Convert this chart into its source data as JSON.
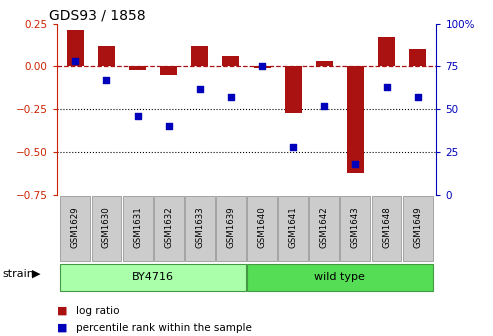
{
  "title": "GDS93 / 1858",
  "samples": [
    "GSM1629",
    "GSM1630",
    "GSM1631",
    "GSM1632",
    "GSM1633",
    "GSM1639",
    "GSM1640",
    "GSM1641",
    "GSM1642",
    "GSM1643",
    "GSM1648",
    "GSM1649"
  ],
  "log_ratio": [
    0.21,
    0.12,
    -0.02,
    -0.05,
    0.12,
    0.06,
    -0.01,
    -0.27,
    0.03,
    -0.62,
    0.17,
    0.1
  ],
  "percentile_rank": [
    78,
    67,
    46,
    40,
    62,
    57,
    75,
    28,
    52,
    18,
    63,
    57
  ],
  "strain_groups": [
    {
      "label": "BY4716",
      "start": 0,
      "end": 5,
      "color": "#aaffaa"
    },
    {
      "label": "wild type",
      "start": 6,
      "end": 11,
      "color": "#55dd55"
    }
  ],
  "bar_color": "#aa1111",
  "dot_color": "#0000bb",
  "ylim_left": [
    -0.75,
    0.25
  ],
  "ylim_right": [
    0,
    100
  ],
  "dotted_lines": [
    -0.25,
    -0.5
  ],
  "background_color": "#ffffff",
  "tick_color_left": "#cc2200",
  "tick_color_right": "#0000bb",
  "strain_label": "strain",
  "legend_bar_label": "log ratio",
  "legend_dot_label": "percentile rank within the sample",
  "sample_box_color": "#cccccc",
  "sample_box_edge": "#999999",
  "strain_border_color": "#449944",
  "n_samples": 12,
  "bar_width": 0.55
}
